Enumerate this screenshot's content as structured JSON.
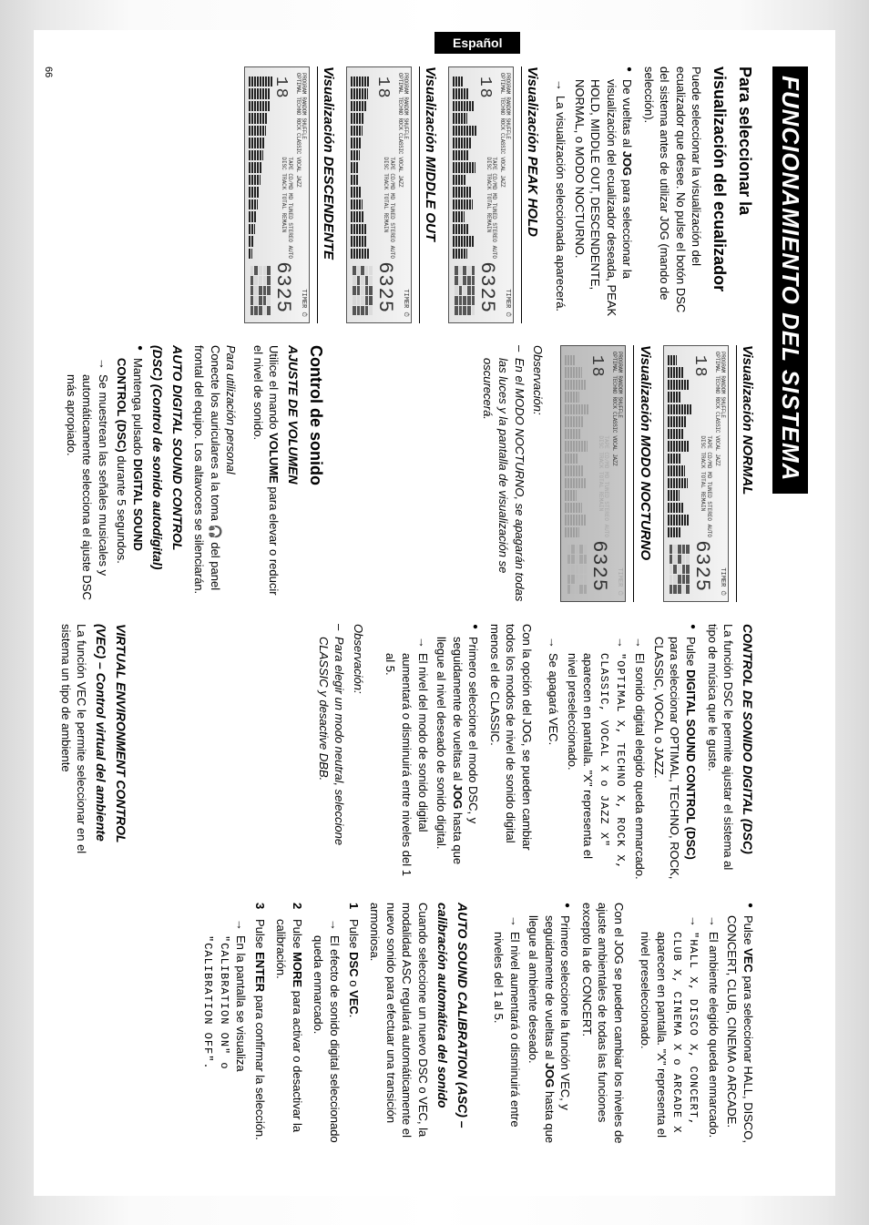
{
  "main_title": "FUNCIONAMIENTO DEL SISTEMA",
  "side_tab": "Español",
  "page_number": "66",
  "lcd": {
    "top_row": "PROGRAM RANDOM SHUFFLE",
    "modes": "OPTIMAL TECHNO ROCK CLASSIC VOCAL JAZZ",
    "big": "18",
    "labels_top": "TAPE  CD/MD  MD  TUNED  STEREO  AUTO",
    "labels_mid": "DISC  TRACK  TOTAL  REMAIN",
    "seg7": "6325",
    "icons": "TIMER ⏱"
  },
  "col1": {
    "h2a": "Para seleccionar la",
    "h2b": "visualización del ecualizador",
    "p1": "Puede seleccionar la visualización del ecualizador que desee. No pulse el botón DSC del sistema antes de utilizar JOG (mando de selección).",
    "b1a": "De vueltas al ",
    "b1b": "JOG",
    "b1c": " para seleccionar la visualización del ecualizador deseada, PEAK HOLD, MIDDLE OUT, DESCENDENTE, NORMAL, o MODO NOCTURNO.",
    "b1_arrow": "La visualización seleccionada aparecerá.",
    "vis_peak": "Visualización PEAK HOLD",
    "vis_mid": "Visualización MIDDLE OUT",
    "vis_desc": "Visualización DESCENDENTE",
    "spec_heights": [
      40,
      70,
      90,
      60,
      100,
      80,
      65,
      95,
      55,
      75,
      85,
      50,
      70,
      90,
      60
    ]
  },
  "col2": {
    "vis_norm": "Visualización NORMAL",
    "vis_noct": "Visualización MODO NOCTURNO",
    "obs_label": "Observación:",
    "obs_dash": "En el MODO NOCTURNO, se apagarán todas las luces y la pantalla de visualización se oscurecerá.",
    "h2_sonido": "Control de sonido",
    "h3_vol": "AJUSTE DE VOLUMEN",
    "vol_p": "Utilice el mando ",
    "vol_b": "VOLUME",
    "vol_p2": " para elevar o reducir el nivel de sonido.",
    "pers_label": "Para utilización personal",
    "pers_p": "Conecte los auriculares a la toma 🎧 del panel frontal del equipo. Los altavoces se silenciarán.",
    "h3_adsc1": "AUTO DIGITAL SOUND CONTROL",
    "h3_adsc2": "(DSC) (Control de sonido autodigital)",
    "adsc_b1a": "Mantenga pulsado ",
    "adsc_b1b": "DIGITAL SOUND CONTROL (DSC)",
    "adsc_b1c": " durante 5 segundos.",
    "adsc_arrow": "Se muestrean las señales musicales y automáticamente selecciona el ajuste DSC más apropiado."
  },
  "col3": {
    "h3_dsc": "CONTROL DE SONIDO DIGITAL (DSC)",
    "dsc_intro": "La función DSC le permite ajustar el sistema al tipo de música que le guste.",
    "d1a": "Pulse ",
    "d1b": "DIGITAL SOUND CONTROL (DSC)",
    "d1c": " para seleccionar OPTIMAL, TECHNO, ROCK, CLASSIC, VOCAL o JAZZ.",
    "d1_arr1": "El sonido digital elegido queda enmarcado.",
    "d1_arr2a": "\"OPTIMAL X, TECHNO X, ROCK X, CLASSIC, VOCAL X o JAZZ X\"",
    "d1_arr2b": " aparecen en pantalla. \"X\" representa el nivel preseleccionado.",
    "d1_arr3": "Se apagará VEC.",
    "jog_p": "Con la opción del JOG, se pueden cambiar todos los modos de nivel de sonido digital menos el de CLASSIC.",
    "d2a": "Primero seleccione el modo DSC, y seguidamente de vueltas al ",
    "d2b": "JOG",
    "d2c": " hasta que llegue al nivel deseado de sonido digital.",
    "d2_arr": "El nivel del modo de sonido digital aumentará o disminuirá entre niveles del 1 al 5.",
    "obs_label": "Observación:",
    "obs_dash": "Para elegir un modo neutral, seleccione CLASSIC y desactive DBB.",
    "h3_vec1": "VIRTUAL ENVIRONMENT CONTROL",
    "h3_vec2": "(VEC) – Control virtual del ambiente",
    "vec_p": "La función VEC le permite seleccionar en el sistema un tipo de ambiente"
  },
  "col4": {
    "v1a": "Pulse ",
    "v1b": "VEC",
    "v1c": " para seleccionar HALL, DISCO, CONCERT, CLUB, CINEMA o ARCADE.",
    "v1_arr1": "El ambiente elegido queda enmarcado.",
    "v1_arr2a": "\"HALL X, DISCO X, CONCERT, CLUB X, CINEMA X o ARCADE X",
    "v1_arr2b": " aparecen en pantalla. \"X\" representa el nivel preseleccionado.",
    "jog_p": "Con el JOG se pueden cambiar los niveles de ajuste ambientales de todas las funciones excepto la de CONCERT.",
    "v2a": "Primero seleccione la función VEC, y seguidamente de vueltas al ",
    "v2b": "JOG",
    "v2c": " hasta que llegue al ambiente deseado.",
    "v2_arr": "El nivel aumentará o disminuirá entre niveles del 1 al 5.",
    "h3_asc1": "AUTO SOUND CALIBRATION (ASC) –",
    "h3_asc2": "calibración automática del sonido",
    "asc_p": "Cuando seleccione un nuevo DSC o VEC, la modalidad ASC regulará automáticamente el nuevo sonido para efectuar una transición armoniosa.",
    "n1a": "Pulse ",
    "n1b": "DSC",
    "n1c": " o ",
    "n1d": "VEC",
    "n1e": ".",
    "n1_arr": "El efecto de sonido digital seleccionado queda enmarcado.",
    "n2a": "Pulse ",
    "n2b": "MORE",
    "n2c": " para activar o desactivar la calibración.",
    "n3a": "Pulse ",
    "n3b": "ENTER",
    "n3c": " para confirmar la selección.",
    "n3_arr1": "En la pantalla se visualiza",
    "n3_arr2": "\"CALIBRATION ON\" o \"CALIBRATION OFF\"."
  }
}
